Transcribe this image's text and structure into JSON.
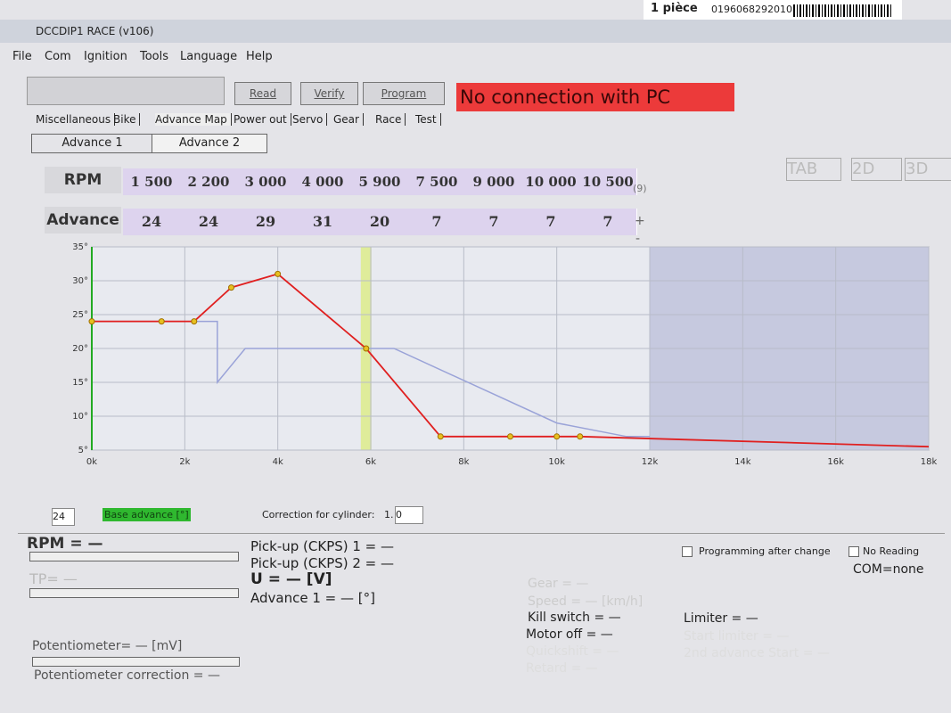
{
  "window": {
    "title": "DCCDIP1 RACE (v106)",
    "label": "1 pièce",
    "barcode": "0196068292010"
  },
  "menu": [
    "File",
    "Com",
    "Ignition",
    "Tools",
    "Language",
    "Help"
  ],
  "buttons": [
    "Read",
    "Verify",
    "Program"
  ],
  "status": "No connection with PC",
  "tabs": [
    "Miscellaneous",
    "Bike",
    "Advance Map",
    "Power out",
    "Servo",
    "Gear",
    "Race",
    "Test"
  ],
  "subtabs": [
    "Advance 1",
    "Advance 2"
  ],
  "view_buttons": [
    "TAB",
    "2D",
    "3D"
  ],
  "table": {
    "row_labels": [
      "RPM",
      "Advance"
    ],
    "rpm": [
      "1 500",
      "2 200",
      "3 000",
      "4 000",
      "5 900",
      "7 500",
      "9 000",
      "10 000",
      "10 500"
    ],
    "advance": [
      "24",
      "24",
      "29",
      "31",
      "20",
      "7",
      "7",
      "7",
      "7"
    ],
    "count": "(9)",
    "plus": "+",
    "minus": "-"
  },
  "chart_data": {
    "type": "line",
    "xlim": [
      0,
      18000
    ],
    "ylim": [
      5,
      35
    ],
    "xticks": [
      {
        "value": 0,
        "label": "0k"
      },
      {
        "value": 2000,
        "label": "2k"
      },
      {
        "value": 4000,
        "label": "4k"
      },
      {
        "value": 6000,
        "label": "6k"
      },
      {
        "value": 8000,
        "label": "8k"
      },
      {
        "value": 10000,
        "label": "10k"
      },
      {
        "value": 12000,
        "label": "12k"
      },
      {
        "value": 14000,
        "label": "14k"
      },
      {
        "value": 16000,
        "label": "16k"
      },
      {
        "value": 18000,
        "label": "18k"
      }
    ],
    "yticks": [
      {
        "value": 5,
        "label": "5°"
      },
      {
        "value": 10,
        "label": "10°"
      },
      {
        "value": 15,
        "label": "15°"
      },
      {
        "value": 20,
        "label": "20°"
      },
      {
        "value": 25,
        "label": "25°"
      },
      {
        "value": 30,
        "label": "30°"
      },
      {
        "value": 35,
        "label": "35°"
      }
    ],
    "grid": true,
    "series": [
      {
        "color": "#9aa3d8",
        "x": [
          0,
          2700,
          2700,
          3300,
          6500,
          10000,
          11500,
          12000
        ],
        "values": [
          24,
          24,
          15,
          20,
          20,
          9,
          7,
          7
        ]
      },
      {
        "color": "#e02020",
        "x": [
          0,
          1500,
          2200,
          3000,
          4000,
          5900,
          7500,
          9000,
          10000,
          10500,
          18000
        ],
        "values": [
          24,
          24,
          24,
          29,
          31,
          20,
          7,
          7,
          7,
          7,
          5.5
        ]
      }
    ],
    "highlight_x": 5900,
    "shaded_from": 12000
  },
  "controls": {
    "base_value": "24",
    "base_label": "Base advance [°]",
    "correction_label": "Correction for cylinder:",
    "cylinder": "1.",
    "correction": "0"
  },
  "readouts": {
    "rpm": "RPM = —",
    "tp": "TP= —",
    "pickup1": "Pick-up (CKPS) 1 = —",
    "pickup2": "Pick-up (CKPS) 2 = —",
    "voltage": "U = — [V]",
    "advance1": "Advance 1 = — [°]",
    "gear": "Gear = —",
    "speed": "Speed = — [km/h]",
    "kill": "Kill switch = —",
    "motor_off": "Motor off = —",
    "quickshift": "Quickshift = —",
    "retard": "Retard = —",
    "limiter": "Limiter = —",
    "start_limiter": "Start limiter = —",
    "second_advance": "2nd advance Start = —",
    "potentiometer": "Potentiometer= — [mV]",
    "pot_correction": "Potentiometer correction = —",
    "programming": "Programming after change",
    "no_reading": "No Reading",
    "com": "COM=none"
  }
}
